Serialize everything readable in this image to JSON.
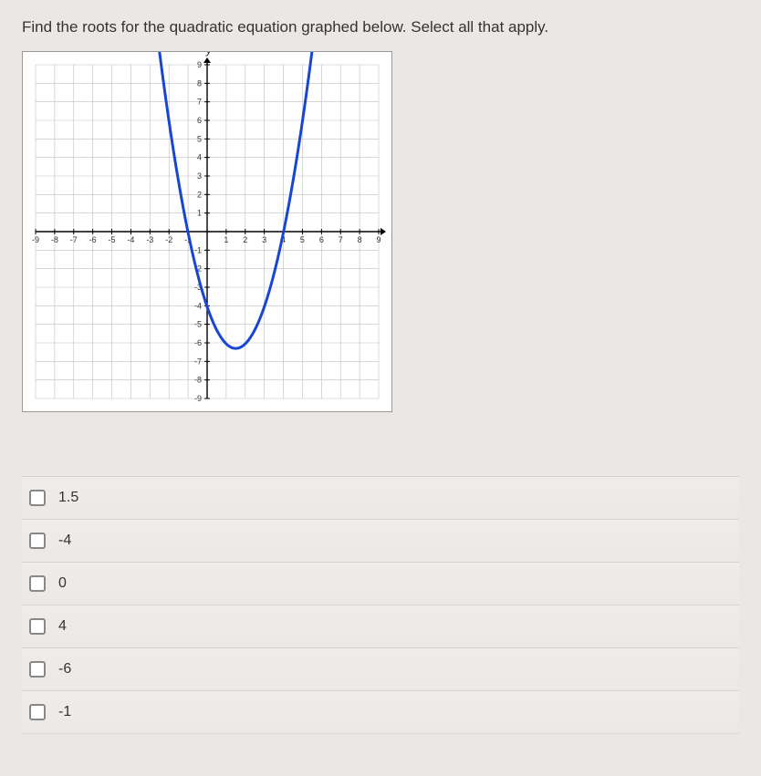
{
  "question": "Find the roots for the quadratic equation graphed below. Select all that apply.",
  "graph": {
    "type": "scatter-line-parabola",
    "xlim": [
      -9,
      9
    ],
    "ylim": [
      -9,
      9
    ],
    "xtick_step": 1,
    "ytick_step": 1,
    "x_axis_label": "x",
    "y_axis_label": "y",
    "grid_color": "#bfbfbf",
    "axis_color": "#000000",
    "background_color": "#ffffff",
    "curve_color": "#1846d4",
    "curve_width": 3,
    "parabola": {
      "vertex": [
        1.5,
        -6.3
      ],
      "roots": [
        -1,
        4
      ],
      "a": 1.0,
      "sample_x": [
        -3,
        -2.5,
        -2,
        -1.5,
        -1,
        -0.5,
        0,
        0.5,
        1,
        1.5,
        2,
        2.5,
        3,
        3.5,
        4,
        4.5,
        5,
        5.5,
        6
      ],
      "sample_y": [
        14,
        9.7,
        6,
        2.7,
        0,
        -2.3,
        -4,
        -5.3,
        -6,
        -6.3,
        -6,
        -5.3,
        -4,
        -2.3,
        0,
        2.7,
        6,
        9.7,
        14
      ]
    },
    "x_ticks": [
      -9,
      -8,
      -7,
      -6,
      -5,
      -4,
      -3,
      -2,
      -1,
      1,
      2,
      3,
      4,
      5,
      6,
      7,
      8,
      9
    ],
    "y_ticks": [
      -9,
      -8,
      -7,
      -6,
      -5,
      -4,
      -3,
      -2,
      -1,
      1,
      2,
      3,
      4,
      5,
      6,
      7,
      8,
      9
    ]
  },
  "options": [
    {
      "label": "1.5"
    },
    {
      "label": "-4"
    },
    {
      "label": "0"
    },
    {
      "label": "4"
    },
    {
      "label": "-6"
    },
    {
      "label": "-1"
    }
  ]
}
